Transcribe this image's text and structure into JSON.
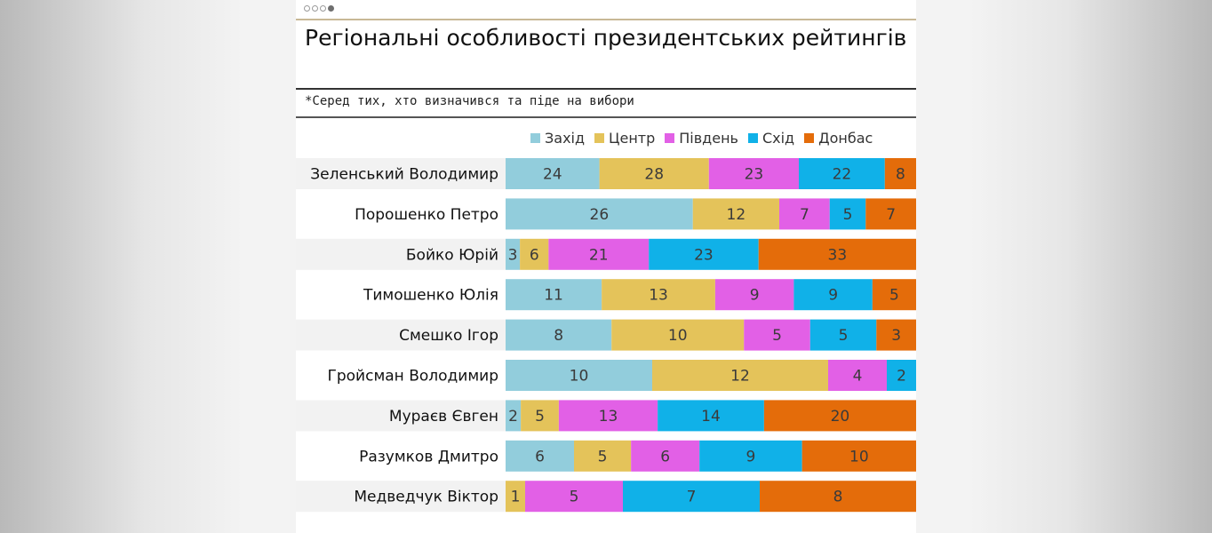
{
  "title": "Регіональні особливості президентських рейтингів",
  "subtitle": "*Серед тих, хто визначився та піде на вибори",
  "chart_data": {
    "type": "bar",
    "orientation": "horizontal",
    "stacked": true,
    "legend_position": "top",
    "categories": [
      "Зеленський Володимир",
      "Порошенко Петро",
      "Бойко Юрій",
      "Тимошенко Юлія",
      "Смешко Ігор",
      "Гройсман Володимир",
      "Мураєв Євген",
      "Разумков Дмитро",
      "Медведчук Віктор"
    ],
    "series": [
      {
        "name": "Захід",
        "color": "#92cddc",
        "values": [
          24,
          26,
          3,
          11,
          8,
          10,
          2,
          6,
          null
        ]
      },
      {
        "name": "Центр",
        "color": "#e4c35a",
        "values": [
          28,
          12,
          6,
          13,
          10,
          12,
          5,
          5,
          1
        ]
      },
      {
        "name": "Південь",
        "color": "#e260e6",
        "values": [
          23,
          7,
          21,
          9,
          5,
          4,
          13,
          6,
          5
        ]
      },
      {
        "name": "Схід",
        "color": "#10b1e8",
        "values": [
          22,
          5,
          23,
          9,
          5,
          2,
          14,
          9,
          7
        ]
      },
      {
        "name": "Донбас",
        "color": "#e46c0a",
        "values": [
          8,
          7,
          33,
          5,
          3,
          null,
          20,
          10,
          8
        ]
      }
    ]
  }
}
